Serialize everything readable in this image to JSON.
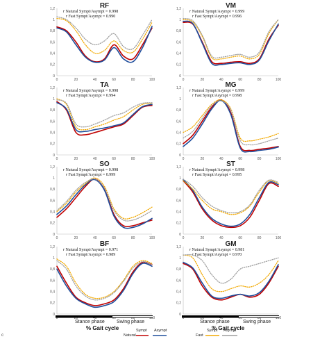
{
  "bottom_mark": "c",
  "x_axis_label": "% Gait cycle",
  "phases": {
    "stance": "Stance phase",
    "swing": "Swing phase"
  },
  "legend": {
    "natural": "Natural",
    "fast": "Fast",
    "sympt": "Sympt",
    "asympt": "Asympt"
  },
  "colors": {
    "natural_sympt": "#c00000",
    "natural_asympt": "#1f4e9c",
    "fast_sympt": "#f2a900",
    "fast_asympt": "#9e9e9e"
  },
  "correlation_text": {
    "r": "r",
    "natural": "Natural",
    "fast": "Fast",
    "sympt": "Sympt",
    "slash": "/",
    "asympt": "Asympt"
  },
  "chart_data": [
    {
      "type": "line",
      "title": "RF",
      "xlim": [
        0,
        100
      ],
      "ylim": [
        0,
        1.2
      ],
      "x_ticks": [
        0,
        20,
        40,
        60,
        80,
        100
      ],
      "y_ticks": [
        "0",
        "0,2",
        "0,4",
        "0,6",
        "0,8",
        "1",
        "1,2"
      ],
      "r_natural": "= 0.998",
      "r_fast": "= 0.990",
      "x": [
        0,
        10,
        20,
        30,
        40,
        50,
        60,
        70,
        80,
        90,
        100
      ],
      "series": [
        {
          "key": "natural_sympt",
          "style": "solid",
          "values": [
            0.87,
            0.8,
            0.6,
            0.35,
            0.25,
            0.3,
            0.55,
            0.35,
            0.3,
            0.55,
            0.85
          ]
        },
        {
          "key": "natural_asympt",
          "style": "solid",
          "values": [
            0.85,
            0.78,
            0.55,
            0.33,
            0.24,
            0.28,
            0.5,
            0.3,
            0.25,
            0.5,
            0.88
          ]
        },
        {
          "key": "fast_sympt",
          "style": "dotted",
          "values": [
            1.02,
            0.98,
            0.8,
            0.55,
            0.4,
            0.45,
            0.62,
            0.45,
            0.42,
            0.65,
            0.95
          ]
        },
        {
          "key": "fast_asympt",
          "style": "dotted",
          "values": [
            1.05,
            1.0,
            0.85,
            0.65,
            0.55,
            0.62,
            0.75,
            0.52,
            0.48,
            0.72,
            1.0
          ]
        }
      ]
    },
    {
      "type": "line",
      "title": "VM",
      "xlim": [
        0,
        100
      ],
      "ylim": [
        0,
        1.2
      ],
      "x_ticks": [
        0,
        20,
        40,
        60,
        80,
        100
      ],
      "y_ticks": [
        "0",
        "0,2",
        "0,4",
        "0,6",
        "0,8",
        "1",
        "1,2"
      ],
      "r_natural": "= 0.999",
      "r_fast": "= 0.996",
      "x": [
        0,
        10,
        20,
        30,
        40,
        50,
        60,
        70,
        80,
        90,
        100
      ],
      "series": [
        {
          "key": "natural_sympt",
          "style": "solid",
          "values": [
            0.95,
            0.92,
            0.6,
            0.25,
            0.22,
            0.24,
            0.25,
            0.22,
            0.3,
            0.65,
            0.9
          ]
        },
        {
          "key": "natural_asympt",
          "style": "solid",
          "values": [
            0.97,
            0.93,
            0.58,
            0.22,
            0.2,
            0.22,
            0.23,
            0.2,
            0.28,
            0.62,
            0.92
          ]
        },
        {
          "key": "fast_sympt",
          "style": "dotted",
          "values": [
            1.0,
            0.96,
            0.7,
            0.32,
            0.3,
            0.33,
            0.35,
            0.3,
            0.38,
            0.75,
            1.0
          ]
        },
        {
          "key": "fast_asympt",
          "style": "dotted",
          "values": [
            1.02,
            0.98,
            0.72,
            0.35,
            0.33,
            0.36,
            0.38,
            0.33,
            0.42,
            0.78,
            1.0
          ]
        }
      ]
    },
    {
      "type": "line",
      "title": "TA",
      "xlim": [
        0,
        100
      ],
      "ylim": [
        0,
        1.2
      ],
      "x_ticks": [
        0,
        20,
        40,
        60,
        80,
        100
      ],
      "y_ticks": [
        "0",
        "0,2",
        "0,4",
        "0,6",
        "0,8",
        "1",
        "1,2"
      ],
      "r_natural": "= 0.998",
      "r_fast": "= 0.994",
      "x": [
        0,
        10,
        20,
        30,
        40,
        50,
        60,
        70,
        80,
        90,
        100
      ],
      "series": [
        {
          "key": "natural_sympt",
          "style": "solid",
          "values": [
            0.95,
            0.8,
            0.4,
            0.36,
            0.4,
            0.45,
            0.5,
            0.55,
            0.7,
            0.85,
            0.88
          ]
        },
        {
          "key": "natural_asympt",
          "style": "solid",
          "values": [
            0.93,
            0.82,
            0.45,
            0.42,
            0.45,
            0.48,
            0.52,
            0.57,
            0.72,
            0.86,
            0.9
          ]
        },
        {
          "key": "fast_sympt",
          "style": "dotted",
          "values": [
            1.0,
            0.9,
            0.5,
            0.45,
            0.5,
            0.55,
            0.62,
            0.68,
            0.8,
            0.9,
            0.92
          ]
        },
        {
          "key": "fast_asympt",
          "style": "dotted",
          "values": [
            0.98,
            0.92,
            0.55,
            0.5,
            0.55,
            0.62,
            0.7,
            0.75,
            0.85,
            0.92,
            0.93
          ]
        }
      ]
    },
    {
      "type": "line",
      "title": "MG",
      "xlim": [
        0,
        100
      ],
      "ylim": [
        0,
        1.2
      ],
      "x_ticks": [
        0,
        20,
        40,
        60,
        80,
        100
      ],
      "y_ticks": [
        "0",
        "0,2",
        "0,4",
        "0,6",
        "0,8",
        "1",
        "1,2"
      ],
      "r_natural": "= 0.999",
      "r_fast": "= 0.998",
      "x": [
        0,
        10,
        20,
        30,
        40,
        50,
        60,
        70,
        80,
        90,
        100
      ],
      "series": [
        {
          "key": "natural_sympt",
          "style": "solid",
          "values": [
            0.2,
            0.35,
            0.6,
            0.85,
            0.98,
            0.75,
            0.15,
            0.08,
            0.1,
            0.12,
            0.15
          ]
        },
        {
          "key": "natural_asympt",
          "style": "solid",
          "values": [
            0.15,
            0.3,
            0.55,
            0.82,
            0.97,
            0.72,
            0.12,
            0.06,
            0.08,
            0.1,
            0.14
          ]
        },
        {
          "key": "fast_sympt",
          "style": "dotted",
          "values": [
            0.4,
            0.5,
            0.7,
            0.9,
            0.98,
            0.82,
            0.3,
            0.25,
            0.28,
            0.32,
            0.38
          ]
        },
        {
          "key": "fast_asympt",
          "style": "dotted",
          "values": [
            0.3,
            0.42,
            0.65,
            0.88,
            0.96,
            0.8,
            0.25,
            0.18,
            0.2,
            0.25,
            0.3
          ]
        }
      ]
    },
    {
      "type": "line",
      "title": "SO",
      "xlim": [
        0,
        100
      ],
      "ylim": [
        0,
        1.2
      ],
      "x_ticks": [
        0,
        20,
        40,
        60,
        80,
        100
      ],
      "y_ticks": [
        "0",
        "0,2",
        "0,4",
        "0,6",
        "0,8",
        "1",
        "1,2"
      ],
      "r_natural": "= 0.998",
      "r_fast": "= 0.999",
      "x": [
        0,
        10,
        20,
        30,
        40,
        50,
        60,
        70,
        80,
        90,
        100
      ],
      "series": [
        {
          "key": "natural_sympt",
          "style": "solid",
          "values": [
            0.3,
            0.45,
            0.65,
            0.85,
            0.98,
            0.8,
            0.35,
            0.15,
            0.15,
            0.2,
            0.25
          ]
        },
        {
          "key": "natural_asympt",
          "style": "solid",
          "values": [
            0.35,
            0.5,
            0.7,
            0.88,
            0.97,
            0.78,
            0.32,
            0.12,
            0.12,
            0.18,
            0.28
          ]
        },
        {
          "key": "fast_sympt",
          "style": "dotted",
          "values": [
            0.4,
            0.55,
            0.75,
            0.9,
            1.0,
            0.85,
            0.45,
            0.28,
            0.3,
            0.38,
            0.48
          ]
        },
        {
          "key": "fast_asympt",
          "style": "dotted",
          "values": [
            0.42,
            0.58,
            0.78,
            0.92,
            0.98,
            0.82,
            0.42,
            0.25,
            0.25,
            0.32,
            0.42
          ]
        }
      ]
    },
    {
      "type": "line",
      "title": "ST",
      "xlim": [
        0,
        100
      ],
      "ylim": [
        0,
        1.2
      ],
      "x_ticks": [
        0,
        20,
        40,
        60,
        80,
        100
      ],
      "y_ticks": [
        "0",
        "0,2",
        "0,4",
        "0,6",
        "0,8",
        "1",
        "1,2"
      ],
      "r_natural": "= 0.998",
      "r_fast": "= 0.995",
      "x": [
        0,
        10,
        20,
        30,
        40,
        50,
        60,
        70,
        80,
        90,
        100
      ],
      "series": [
        {
          "key": "natural_sympt",
          "style": "solid",
          "values": [
            0.95,
            0.75,
            0.45,
            0.25,
            0.15,
            0.12,
            0.15,
            0.3,
            0.6,
            0.9,
            0.85
          ]
        },
        {
          "key": "natural_asympt",
          "style": "solid",
          "values": [
            0.97,
            0.78,
            0.48,
            0.28,
            0.18,
            0.14,
            0.18,
            0.35,
            0.65,
            0.92,
            0.88
          ]
        },
        {
          "key": "fast_sympt",
          "style": "dotted",
          "values": [
            0.95,
            0.8,
            0.6,
            0.45,
            0.4,
            0.35,
            0.38,
            0.5,
            0.75,
            0.95,
            0.9
          ]
        },
        {
          "key": "fast_asympt",
          "style": "dotted",
          "values": [
            0.98,
            0.85,
            0.65,
            0.5,
            0.42,
            0.38,
            0.4,
            0.52,
            0.78,
            0.96,
            0.92
          ]
        }
      ]
    },
    {
      "type": "line",
      "title": "BF",
      "xlim": [
        0,
        100
      ],
      "ylim": [
        0,
        1.2
      ],
      "x_ticks": [
        0,
        20,
        40,
        60,
        80,
        100
      ],
      "y_ticks": [
        "0",
        "0,2",
        "0,4",
        "0,6",
        "0,8",
        "1",
        "1,2"
      ],
      "r_natural": "= 0.971",
      "r_fast": "= 0.989",
      "x": [
        0,
        10,
        20,
        30,
        40,
        50,
        60,
        70,
        80,
        90,
        100
      ],
      "series": [
        {
          "key": "natural_sympt",
          "style": "solid",
          "values": [
            0.85,
            0.55,
            0.3,
            0.2,
            0.15,
            0.18,
            0.25,
            0.45,
            0.75,
            0.92,
            0.88
          ]
        },
        {
          "key": "natural_asympt",
          "style": "solid",
          "values": [
            0.8,
            0.5,
            0.28,
            0.18,
            0.12,
            0.15,
            0.22,
            0.42,
            0.72,
            0.9,
            0.85
          ]
        },
        {
          "key": "fast_sympt",
          "style": "dotted",
          "values": [
            0.98,
            0.85,
            0.55,
            0.35,
            0.28,
            0.3,
            0.4,
            0.6,
            0.85,
            0.95,
            0.9
          ]
        },
        {
          "key": "fast_asympt",
          "style": "dotted",
          "values": [
            0.95,
            0.8,
            0.5,
            0.32,
            0.25,
            0.28,
            0.38,
            0.58,
            0.82,
            0.93,
            0.88
          ]
        }
      ]
    },
    {
      "type": "line",
      "title": "GM",
      "xlim": [
        0,
        100
      ],
      "ylim": [
        0,
        1.2
      ],
      "x_ticks": [
        0,
        20,
        40,
        60,
        80,
        100
      ],
      "y_ticks": [
        "0",
        "0,2",
        "0,4",
        "0,6",
        "0,8",
        "1",
        "1,2"
      ],
      "r_natural": "= 0.981",
      "r_fast": "= 0.970",
      "x": [
        0,
        10,
        20,
        30,
        40,
        50,
        60,
        70,
        80,
        90,
        100
      ],
      "series": [
        {
          "key": "natural_sympt",
          "style": "solid",
          "values": [
            0.9,
            0.8,
            0.5,
            0.3,
            0.25,
            0.3,
            0.35,
            0.3,
            0.35,
            0.55,
            0.85
          ]
        },
        {
          "key": "natural_asympt",
          "style": "solid",
          "values": [
            0.92,
            0.82,
            0.55,
            0.32,
            0.28,
            0.32,
            0.35,
            0.32,
            0.38,
            0.58,
            0.88
          ]
        },
        {
          "key": "fast_sympt",
          "style": "dotted",
          "values": [
            1.05,
            1.0,
            0.7,
            0.45,
            0.4,
            0.45,
            0.5,
            0.48,
            0.55,
            0.7,
            0.95
          ]
        },
        {
          "key": "fast_asympt",
          "style": "dotted",
          "values": [
            1.05,
            1.05,
            0.95,
            0.7,
            0.55,
            0.62,
            0.8,
            0.85,
            0.9,
            0.95,
            1.0
          ]
        }
      ]
    }
  ]
}
